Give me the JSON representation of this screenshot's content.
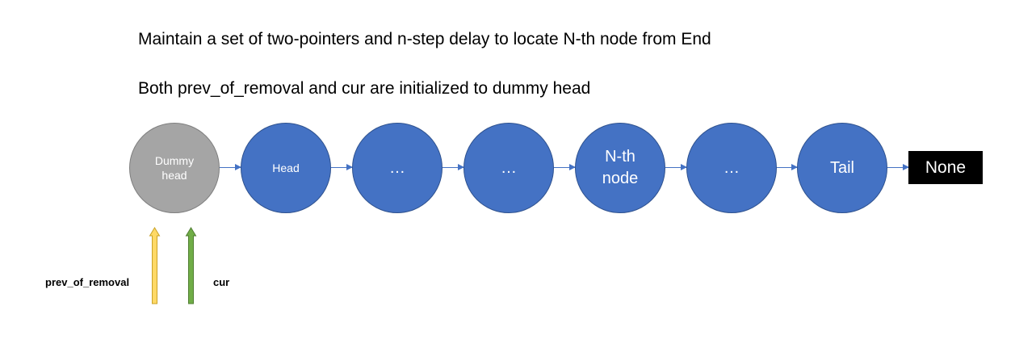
{
  "titles": {
    "line1": "Maintain a set of two-pointers and n-step delay to locate N-th node from End",
    "line2": "Both prev_of_removal and cur are initialized to dummy head"
  },
  "nodes": [
    {
      "label": "Dummy\nhead",
      "color": "#a5a5a5"
    },
    {
      "label": "Head",
      "color": "#4472c4"
    },
    {
      "label": "…",
      "color": "#4472c4"
    },
    {
      "label": "…",
      "color": "#4472c4"
    },
    {
      "label": "N-th\nnode",
      "color": "#4472c4"
    },
    {
      "label": "…",
      "color": "#4472c4"
    },
    {
      "label": "Tail",
      "color": "#4472c4"
    }
  ],
  "terminal": {
    "label": "None",
    "color": "#000000"
  },
  "pointers": [
    {
      "label": "prev_of_removal",
      "color": "#ffd966",
      "points_to": "Dummy\nhead"
    },
    {
      "label": "cur",
      "color": "#70ad47",
      "points_to": "Dummy\nhead"
    }
  ],
  "colors": {
    "node_blue": "#4472c4",
    "node_gray": "#a5a5a5",
    "arrow": "#4472c4"
  }
}
